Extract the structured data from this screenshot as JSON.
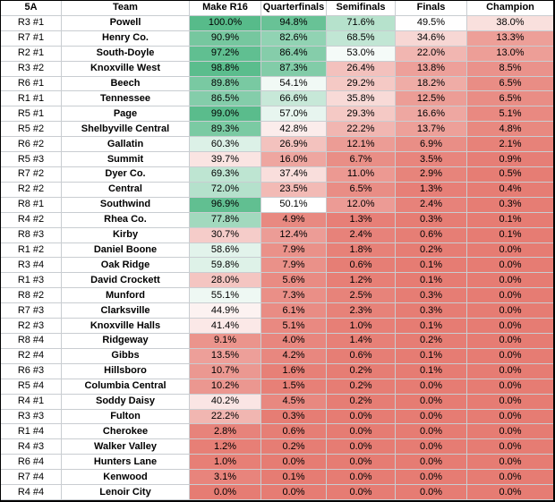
{
  "chart_data": {
    "type": "heatmap",
    "columns": [
      "5A",
      "Team",
      "Make R16",
      "Quarterfinals",
      "Semifinals",
      "Finals",
      "Champion"
    ],
    "value_unit": "%",
    "color_scale": {
      "min_value": 0,
      "min_color": "#e67c73",
      "mid_value": 50,
      "mid_color": "#ffffff",
      "max_value": 100,
      "max_color": "#57bb8a"
    },
    "grid_color": "#c9cdd1",
    "outer_border_color": "#000000",
    "rows": [
      {
        "seed": "R3 #1",
        "team": "Powell",
        "values": [
          100.0,
          94.8,
          71.6,
          49.5,
          38.0
        ]
      },
      {
        "seed": "R7 #1",
        "team": "Henry Co.",
        "values": [
          90.9,
          82.6,
          68.5,
          34.6,
          13.3
        ]
      },
      {
        "seed": "R2 #1",
        "team": "South-Doyle",
        "values": [
          97.2,
          86.4,
          53.0,
          22.0,
          13.0
        ]
      },
      {
        "seed": "R3 #2",
        "team": "Knoxville West",
        "values": [
          98.8,
          87.3,
          26.4,
          13.8,
          8.5
        ]
      },
      {
        "seed": "R6 #1",
        "team": "Beech",
        "values": [
          89.8,
          54.1,
          29.2,
          18.2,
          6.5
        ]
      },
      {
        "seed": "R1 #1",
        "team": "Tennessee",
        "values": [
          86.5,
          66.6,
          35.8,
          12.5,
          6.5
        ]
      },
      {
        "seed": "R5 #1",
        "team": "Page",
        "values": [
          99.0,
          57.0,
          29.3,
          16.6,
          5.1
        ]
      },
      {
        "seed": "R5 #2",
        "team": "Shelbyville Central",
        "values": [
          89.3,
          42.8,
          22.2,
          13.7,
          4.8
        ]
      },
      {
        "seed": "R6 #2",
        "team": "Gallatin",
        "values": [
          60.3,
          26.9,
          12.1,
          6.9,
          2.1
        ]
      },
      {
        "seed": "R5 #3",
        "team": "Summit",
        "values": [
          39.7,
          16.0,
          6.7,
          3.5,
          0.9
        ]
      },
      {
        "seed": "R7 #2",
        "team": "Dyer Co.",
        "values": [
          69.3,
          37.4,
          11.0,
          2.9,
          0.5
        ]
      },
      {
        "seed": "R2 #2",
        "team": "Central",
        "values": [
          72.0,
          23.5,
          6.5,
          1.3,
          0.4
        ]
      },
      {
        "seed": "R8 #1",
        "team": "Southwind",
        "values": [
          96.9,
          50.1,
          12.0,
          2.4,
          0.3
        ]
      },
      {
        "seed": "R4 #2",
        "team": "Rhea Co.",
        "values": [
          77.8,
          4.9,
          1.3,
          0.3,
          0.1
        ]
      },
      {
        "seed": "R8 #3",
        "team": "Kirby",
        "values": [
          30.7,
          12.4,
          2.4,
          0.6,
          0.1
        ]
      },
      {
        "seed": "R1 #2",
        "team": "Daniel Boone",
        "values": [
          58.6,
          7.9,
          1.8,
          0.2,
          0.0
        ]
      },
      {
        "seed": "R3 #4",
        "team": "Oak Ridge",
        "values": [
          59.8,
          7.9,
          0.6,
          0.1,
          0.0
        ]
      },
      {
        "seed": "R1 #3",
        "team": "David Crockett",
        "values": [
          28.0,
          5.6,
          1.2,
          0.1,
          0.0
        ]
      },
      {
        "seed": "R8 #2",
        "team": "Munford",
        "values": [
          55.1,
          7.3,
          2.5,
          0.3,
          0.0
        ]
      },
      {
        "seed": "R7 #3",
        "team": "Clarksville",
        "values": [
          44.9,
          6.1,
          2.3,
          0.3,
          0.0
        ]
      },
      {
        "seed": "R2 #3",
        "team": "Knoxville Halls",
        "values": [
          41.4,
          5.1,
          1.0,
          0.1,
          0.0
        ]
      },
      {
        "seed": "R8 #4",
        "team": "Ridgeway",
        "values": [
          9.1,
          4.0,
          1.4,
          0.2,
          0.0
        ]
      },
      {
        "seed": "R2 #4",
        "team": "Gibbs",
        "values": [
          13.5,
          4.2,
          0.6,
          0.1,
          0.0
        ]
      },
      {
        "seed": "R6 #3",
        "team": "Hillsboro",
        "values": [
          10.7,
          1.6,
          0.2,
          0.1,
          0.0
        ]
      },
      {
        "seed": "R5 #4",
        "team": "Columbia Central",
        "values": [
          10.2,
          1.5,
          0.2,
          0.0,
          0.0
        ]
      },
      {
        "seed": "R4 #1",
        "team": "Soddy Daisy",
        "values": [
          40.2,
          4.5,
          0.2,
          0.0,
          0.0
        ]
      },
      {
        "seed": "R3 #3",
        "team": "Fulton",
        "values": [
          22.2,
          0.3,
          0.0,
          0.0,
          0.0
        ]
      },
      {
        "seed": "R1 #4",
        "team": "Cherokee",
        "values": [
          2.8,
          0.6,
          0.0,
          0.0,
          0.0
        ]
      },
      {
        "seed": "R4 #3",
        "team": "Walker Valley",
        "values": [
          1.2,
          0.2,
          0.0,
          0.0,
          0.0
        ]
      },
      {
        "seed": "R6 #4",
        "team": "Hunters Lane",
        "values": [
          1.0,
          0.0,
          0.0,
          0.0,
          0.0
        ]
      },
      {
        "seed": "R7 #4",
        "team": "Kenwood",
        "values": [
          3.1,
          0.1,
          0.0,
          0.0,
          0.0
        ]
      },
      {
        "seed": "R4 #4",
        "team": "Lenoir City",
        "values": [
          0.0,
          0.0,
          0.0,
          0.0,
          0.0
        ]
      }
    ]
  }
}
